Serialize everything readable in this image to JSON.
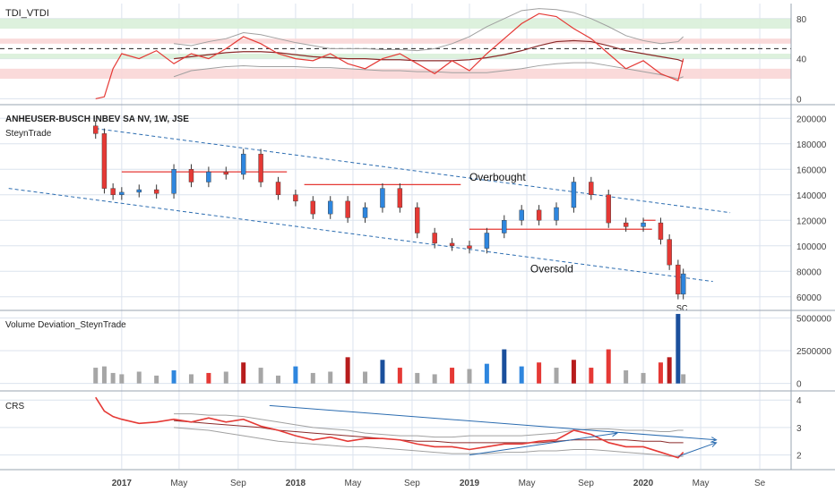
{
  "colors": {
    "up": "#2e86de",
    "down": "#e53935",
    "wick": "#333333",
    "trend": "#2b6cb0",
    "level": "#e53935",
    "vol_neutral": "#a6a6a6",
    "vol_up": "#2e86de",
    "vol_down": "#e53935",
    "vol_strong_up": "#1a4f9c",
    "vol_strong_down": "#b71c1c",
    "tdi_line": "#e53935",
    "tdi_mid": "#8b2a2a",
    "tdi_band": "#a0a0a0",
    "zone_green": "#d9efd9",
    "zone_red": "#f9d6d6",
    "grid": "#dce3ee",
    "axis_text": "#444444"
  },
  "chart_data": [
    {
      "type": "line",
      "title": "TDI_VTDI",
      "ylim": [
        -5,
        95
      ],
      "yticks": [
        "80",
        "40",
        "0"
      ],
      "ytick_values": [
        80,
        40,
        0
      ],
      "reference_line": 50,
      "zones": [
        {
          "from": 70,
          "to": 80,
          "color": "green"
        },
        {
          "from": 40,
          "to": 45,
          "color": "green"
        },
        {
          "from": 55,
          "to": 60,
          "color": "red"
        },
        {
          "from": 20,
          "to": 30,
          "color": "red"
        }
      ],
      "x": [
        2016.85,
        2016.9,
        2016.95,
        2017.0,
        2017.1,
        2017.2,
        2017.3,
        2017.4,
        2017.5,
        2017.6,
        2017.7,
        2017.8,
        2017.9,
        2018.0,
        2018.1,
        2018.2,
        2018.3,
        2018.4,
        2018.5,
        2018.6,
        2018.7,
        2018.8,
        2018.9,
        2019.0,
        2019.1,
        2019.2,
        2019.3,
        2019.4,
        2019.5,
        2019.6,
        2019.7,
        2019.8,
        2019.9,
        2020.0,
        2020.1,
        2020.2,
        2020.23
      ],
      "series": [
        {
          "values": [
            0,
            2,
            30,
            45,
            40,
            48,
            35,
            45,
            40,
            50,
            62,
            55,
            45,
            40,
            38,
            45,
            35,
            30,
            40,
            45,
            35,
            25,
            38,
            28,
            45,
            60,
            75,
            85,
            82,
            70,
            60,
            45,
            30,
            38,
            25,
            18,
            40
          ]
        },
        {
          "values": [
            null,
            null,
            null,
            null,
            null,
            null,
            40,
            42,
            44,
            46,
            47,
            47,
            46,
            44,
            42,
            41,
            40,
            40,
            39,
            39,
            38,
            38,
            38,
            39,
            41,
            44,
            48,
            53,
            57,
            58,
            57,
            53,
            48,
            45,
            42,
            39,
            37
          ]
        },
        {
          "values": [
            null,
            null,
            null,
            null,
            null,
            null,
            55,
            53,
            57,
            60,
            66,
            64,
            60,
            56,
            53,
            50,
            50,
            50,
            49,
            49,
            48,
            50,
            55,
            62,
            72,
            80,
            88,
            90,
            89,
            86,
            80,
            72,
            63,
            58,
            55,
            57,
            62
          ]
        },
        {
          "values": [
            null,
            null,
            null,
            null,
            null,
            null,
            22,
            28,
            30,
            32,
            33,
            32,
            32,
            32,
            31,
            31,
            30,
            29,
            28,
            28,
            27,
            27,
            26,
            26,
            26,
            28,
            30,
            33,
            35,
            36,
            36,
            33,
            30,
            27,
            24,
            20,
            22
          ]
        }
      ]
    },
    {
      "type": "candlestick",
      "title": "ANHEUSER-BUSCH INBEV SA NV, 1W, JSE",
      "subtitle": "SteynTrade",
      "ylim": [
        50000,
        210000
      ],
      "yticks": [
        "200000",
        "180000",
        "160000",
        "140000",
        "120000",
        "100000",
        "80000",
        "60000"
      ],
      "ytick_values": [
        200000,
        180000,
        160000,
        140000,
        120000,
        100000,
        80000,
        60000
      ],
      "x": [
        2016.85,
        2016.9,
        2016.95,
        2017.0,
        2017.1,
        2017.2,
        2017.3,
        2017.4,
        2017.5,
        2017.6,
        2017.7,
        2017.8,
        2017.9,
        2018.0,
        2018.1,
        2018.2,
        2018.3,
        2018.4,
        2018.5,
        2018.6,
        2018.7,
        2018.8,
        2018.9,
        2019.0,
        2019.1,
        2019.2,
        2019.3,
        2019.4,
        2019.5,
        2019.6,
        2019.7,
        2019.8,
        2019.9,
        2020.0,
        2020.1,
        2020.15,
        2020.2,
        2020.23
      ],
      "close": [
        188000,
        145000,
        140000,
        142000,
        144000,
        141000,
        160000,
        150000,
        158000,
        156000,
        172000,
        150000,
        140000,
        135000,
        125000,
        135000,
        122000,
        130000,
        145000,
        130000,
        110000,
        102000,
        100000,
        98000,
        110000,
        120000,
        128000,
        120000,
        130000,
        150000,
        140000,
        118000,
        115000,
        118000,
        105000,
        85000,
        62000,
        78000
      ],
      "trendlines": [
        {
          "from": [
            2016.85,
            192000
          ],
          "to": [
            2020.5,
            126000
          ]
        },
        {
          "from": [
            2016.35,
            145000
          ],
          "to": [
            2020.4,
            72000
          ]
        }
      ],
      "levels": [
        {
          "value": 158000,
          "from": 2017.0,
          "to": 2017.95
        },
        {
          "value": 148000,
          "from": 2018.05,
          "to": 2018.95
        },
        {
          "value": 113000,
          "from": 2019.0,
          "to": 2020.05
        },
        {
          "value": 120000,
          "from": 2020.0,
          "to": 2020.07
        }
      ],
      "annotations": [
        {
          "text": "Overbought",
          "x": 2019.0,
          "y": 151000
        },
        {
          "text": "Oversold",
          "x": 2019.35,
          "y": 79000
        },
        {
          "text": "SC",
          "x": 2020.19,
          "y": 49000
        }
      ]
    },
    {
      "type": "bar",
      "title": "Volume Deviation_SteynTrade",
      "ylim": [
        -500000,
        5500000
      ],
      "yticks": [
        "5000000",
        "2500000",
        "0"
      ],
      "ytick_values": [
        5000000,
        2500000,
        0
      ],
      "x": [
        2016.85,
        2016.9,
        2016.95,
        2017.0,
        2017.1,
        2017.2,
        2017.3,
        2017.4,
        2017.5,
        2017.6,
        2017.7,
        2017.8,
        2017.9,
        2018.0,
        2018.1,
        2018.2,
        2018.3,
        2018.4,
        2018.5,
        2018.6,
        2018.7,
        2018.8,
        2018.9,
        2019.0,
        2019.1,
        2019.2,
        2019.3,
        2019.4,
        2019.5,
        2019.6,
        2019.7,
        2019.8,
        2019.9,
        2020.0,
        2020.1,
        2020.15,
        2020.2,
        2020.23
      ],
      "values": [
        1200000,
        1300000,
        800000,
        700000,
        900000,
        600000,
        1000000,
        700000,
        800000,
        900000,
        1600000,
        1200000,
        600000,
        1300000,
        800000,
        900000,
        2000000,
        900000,
        1800000,
        1200000,
        800000,
        700000,
        1200000,
        1100000,
        1500000,
        2600000,
        1300000,
        1600000,
        1200000,
        1800000,
        1200000,
        2600000,
        1000000,
        800000,
        1600000,
        2000000,
        5300000,
        700000
      ],
      "tones": [
        "neutral",
        "neutral",
        "neutral",
        "neutral",
        "neutral",
        "neutral",
        "up",
        "neutral",
        "down",
        "neutral",
        "strong_down",
        "neutral",
        "neutral",
        "up",
        "neutral",
        "neutral",
        "strong_down",
        "neutral",
        "strong_up",
        "down",
        "neutral",
        "neutral",
        "down",
        "neutral",
        "up",
        "strong_up",
        "up",
        "down",
        "neutral",
        "strong_down",
        "down",
        "down",
        "neutral",
        "neutral",
        "down",
        "strong_down",
        "strong_up",
        "neutral"
      ]
    },
    {
      "type": "line",
      "title": "CRS",
      "ylim": [
        1.5,
        4.3
      ],
      "yticks": [
        "4",
        "3",
        "2"
      ],
      "ytick_values": [
        4,
        3,
        2
      ],
      "x": [
        2016.85,
        2016.9,
        2016.95,
        2017.0,
        2017.1,
        2017.2,
        2017.3,
        2017.4,
        2017.5,
        2017.6,
        2017.7,
        2017.8,
        2017.9,
        2018.0,
        2018.1,
        2018.2,
        2018.3,
        2018.4,
        2018.5,
        2018.6,
        2018.7,
        2018.8,
        2018.9,
        2019.0,
        2019.1,
        2019.2,
        2019.3,
        2019.4,
        2019.5,
        2019.6,
        2019.7,
        2019.8,
        2019.9,
        2020.0,
        2020.1,
        2020.15,
        2020.2,
        2020.23
      ],
      "series": [
        {
          "values": [
            4.1,
            3.6,
            3.4,
            3.3,
            3.15,
            3.2,
            3.3,
            3.2,
            3.35,
            3.2,
            3.3,
            3.05,
            2.9,
            2.7,
            2.55,
            2.65,
            2.5,
            2.6,
            2.6,
            2.55,
            2.4,
            2.3,
            2.3,
            2.2,
            2.3,
            2.4,
            2.4,
            2.5,
            2.55,
            2.9,
            2.75,
            2.45,
            2.3,
            2.3,
            2.1,
            2.0,
            1.9,
            2.1
          ]
        },
        {
          "values": [
            null,
            null,
            null,
            null,
            null,
            null,
            3.25,
            3.2,
            3.15,
            3.1,
            3.05,
            3.0,
            2.9,
            2.85,
            2.8,
            2.75,
            2.7,
            2.65,
            2.6,
            2.55,
            2.5,
            2.5,
            2.45,
            2.45,
            2.45,
            2.45,
            2.45,
            2.45,
            2.5,
            2.55,
            2.55,
            2.55,
            2.55,
            2.5,
            2.5,
            2.45,
            2.45,
            2.45
          ]
        },
        {
          "values": [
            null,
            null,
            null,
            null,
            null,
            null,
            3.5,
            3.5,
            3.45,
            3.45,
            3.4,
            3.3,
            3.2,
            3.1,
            3.0,
            2.95,
            2.9,
            2.8,
            2.75,
            2.7,
            2.7,
            2.65,
            2.65,
            2.7,
            2.7,
            2.7,
            2.7,
            2.75,
            2.8,
            2.9,
            2.95,
            2.95,
            2.9,
            2.9,
            2.85,
            2.85,
            2.9,
            2.9
          ]
        },
        {
          "values": [
            null,
            null,
            null,
            null,
            null,
            null,
            3.0,
            2.95,
            2.9,
            2.8,
            2.7,
            2.6,
            2.5,
            2.45,
            2.4,
            2.35,
            2.3,
            2.3,
            2.25,
            2.2,
            2.15,
            2.1,
            2.05,
            2.05,
            2.05,
            2.1,
            2.1,
            2.15,
            2.15,
            2.2,
            2.2,
            2.15,
            2.1,
            2.05,
            2.0,
            1.95,
            1.95,
            1.95
          ]
        }
      ],
      "trendlines": [
        {
          "from": [
            2017.85,
            3.8
          ],
          "to": [
            2020.42,
            2.55
          ]
        },
        {
          "from": [
            2019.0,
            2.0
          ],
          "to": [
            2019.85,
            2.8
          ]
        }
      ],
      "arrows": [
        {
          "from": [
            2020.2,
            1.95
          ],
          "to": [
            2020.42,
            2.45
          ]
        }
      ]
    }
  ],
  "time_axis": {
    "labels": [
      "2017",
      "May",
      "Sep",
      "2018",
      "May",
      "Sep",
      "2019",
      "May",
      "Sep",
      "2020",
      "May",
      "Se"
    ],
    "values": [
      2017.0,
      2017.33,
      2017.67,
      2018.0,
      2018.33,
      2018.67,
      2019.0,
      2019.33,
      2019.67,
      2020.0,
      2020.33,
      2020.67
    ],
    "bold": [
      true,
      false,
      false,
      true,
      false,
      false,
      true,
      false,
      false,
      true,
      false,
      false
    ]
  }
}
